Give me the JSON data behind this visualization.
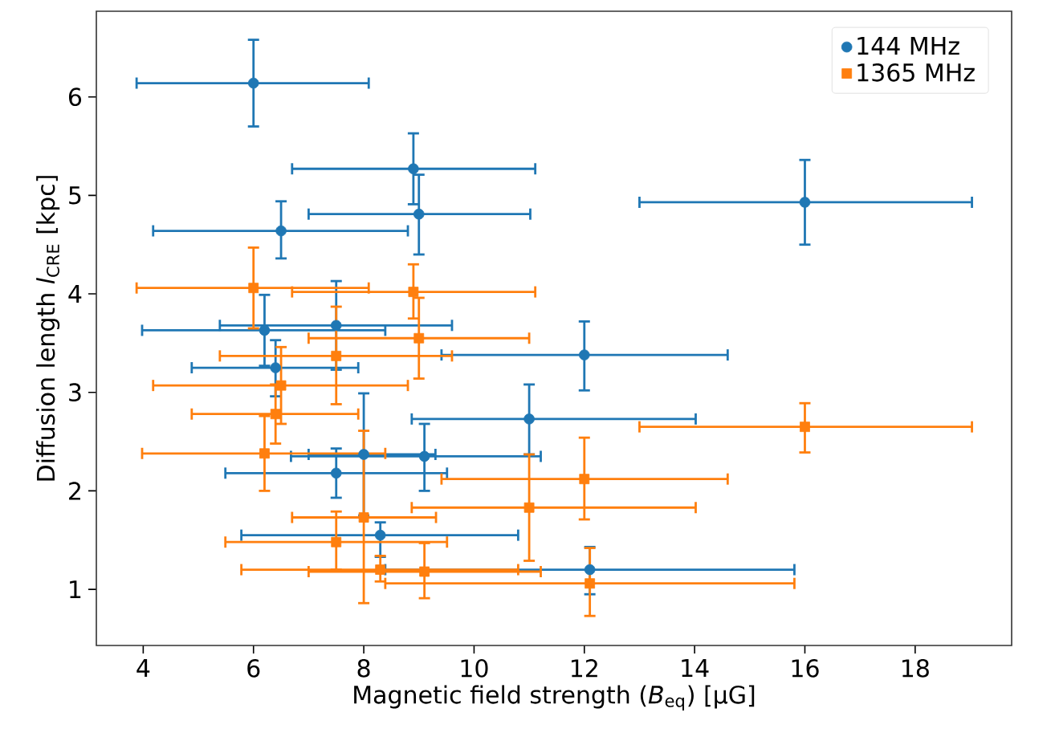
{
  "chart_data": {
    "type": "scatter",
    "xlabel": "Magnetic field strength (*B*$_{eq}$) [μG]",
    "ylabel": "Diffusion length *l*$_{CRE}$ [kpc]",
    "xlim": [
      3.15,
      19.75
    ],
    "ylim": [
      0.43,
      6.87
    ],
    "xticks": [
      4,
      6,
      8,
      10,
      12,
      14,
      16,
      18
    ],
    "yticks": [
      1,
      2,
      3,
      4,
      5,
      6
    ],
    "legend": "top right",
    "series": [
      {
        "name": "144 MHz",
        "color": "#1f77b4",
        "marker": "circle",
        "x": [
          6,
          8.9,
          9.0,
          6.5,
          16.0,
          6.2,
          7.5,
          6.4,
          12.0,
          11.0,
          8.0,
          9.1,
          7.5,
          8.3,
          12.1
        ],
        "values": [
          6.14,
          5.27,
          4.81,
          4.64,
          4.93,
          3.63,
          3.68,
          3.25,
          3.38,
          2.73,
          2.37,
          2.35,
          2.18,
          1.55,
          1.2
        ],
        "errors": [
          [
            5.7,
            6.58
          ],
          [
            4.91,
            5.63
          ],
          [
            4.4,
            5.21
          ],
          [
            4.36,
            4.94
          ],
          [
            4.5,
            5.36
          ],
          [
            3.27,
            3.99
          ],
          [
            3.23,
            4.13
          ],
          [
            2.96,
            3.53
          ],
          [
            3.02,
            3.72
          ],
          [
            2.37,
            3.08
          ],
          [
            1.75,
            2.99
          ],
          [
            2.0,
            2.68
          ],
          [
            1.93,
            2.43
          ],
          [
            1.33,
            1.68
          ],
          [
            0.95,
            1.43
          ]
        ],
        "xerrors": [
          [
            3.88,
            8.09
          ],
          [
            6.7,
            11.11
          ],
          [
            7.0,
            11.02
          ],
          [
            4.18,
            8.8
          ],
          [
            13.0,
            19.03
          ],
          [
            3.98,
            8.39
          ],
          [
            5.39,
            9.6
          ],
          [
            4.88,
            7.9
          ],
          [
            9.41,
            14.6
          ],
          [
            8.87,
            14.02
          ],
          [
            7.0,
            9.3
          ],
          [
            6.68,
            11.21
          ],
          [
            5.49,
            9.51
          ],
          [
            5.78,
            10.8
          ],
          [
            8.39,
            15.81
          ]
        ]
      },
      {
        "name": "1365 MHz",
        "color": "#ff7f0e",
        "marker": "square",
        "x": [
          6.0,
          8.9,
          9.0,
          7.5,
          6.5,
          6.4,
          16.0,
          6.2,
          12.0,
          11.0,
          8.0,
          7.5,
          8.3,
          9.1,
          12.1
        ],
        "values": [
          4.06,
          4.02,
          3.55,
          3.37,
          3.07,
          2.78,
          2.65,
          2.38,
          2.12,
          1.83,
          1.73,
          1.48,
          1.2,
          1.18,
          1.06
        ],
        "errors": [
          [
            3.65,
            4.47
          ],
          [
            3.75,
            4.3
          ],
          [
            3.14,
            3.96
          ],
          [
            2.88,
            3.87
          ],
          [
            2.68,
            3.46
          ],
          [
            2.48,
            3.08
          ],
          [
            2.39,
            2.89
          ],
          [
            2.0,
            2.76
          ],
          [
            1.71,
            2.54
          ],
          [
            1.29,
            2.37
          ],
          [
            0.86,
            2.61
          ],
          [
            1.2,
            1.79
          ],
          [
            1.08,
            1.34
          ],
          [
            0.91,
            1.47
          ],
          [
            0.73,
            1.42
          ]
        ],
        "xerrors": [
          [
            3.88,
            8.09
          ],
          [
            6.7,
            11.11
          ],
          [
            7.0,
            11.0
          ],
          [
            5.39,
            9.6
          ],
          [
            4.18,
            8.8
          ],
          [
            4.88,
            7.9
          ],
          [
            13.0,
            19.03
          ],
          [
            3.98,
            8.39
          ],
          [
            9.41,
            14.6
          ],
          [
            8.87,
            14.02
          ],
          [
            6.7,
            9.31
          ],
          [
            5.49,
            9.51
          ],
          [
            5.78,
            10.8
          ],
          [
            7.0,
            11.21
          ],
          [
            8.39,
            15.81
          ]
        ]
      }
    ]
  }
}
